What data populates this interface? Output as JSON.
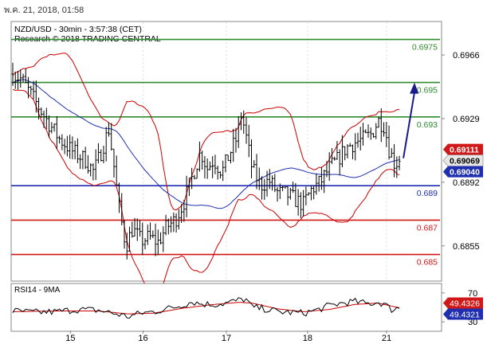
{
  "header": {
    "timestamp": "พ.ค. 21, 2018, 01:58",
    "symbol_line": "NZD/USD - 30min - 3:57:38 (CET)",
    "research_line": "Research © 2018 TRADING CENTRAL"
  },
  "colors": {
    "resistance": "#2e8b2e",
    "pivot": "#1f2fb0",
    "support": "#d01818",
    "price_bar": "#000000",
    "bollinger": "#cc0000",
    "moving_average": "#1f2fb0",
    "forecast_arrow": "#1a1a8c",
    "rsi_line": "#000000",
    "rsi_ma": "#cc0000",
    "tag_red": "#d01818",
    "tag_blue": "#1f2fb0",
    "tag_gray": "#e8e8e8"
  },
  "chart_data": [
    {
      "type": "line",
      "instrument": "NZD/USD",
      "timeframe": "30min",
      "x_ticks": [
        "15",
        "16",
        "17",
        "18",
        "21"
      ],
      "y_ticks": [
        0.6966,
        0.6929,
        0.6892,
        0.6855
      ],
      "ylim": [
        0.6835,
        0.6985
      ],
      "price_path": [
        [
          0.0,
          0.6955
        ],
        [
          0.02,
          0.6952
        ],
        [
          0.05,
          0.694
        ],
        [
          0.08,
          0.6928
        ],
        [
          0.11,
          0.6917
        ],
        [
          0.14,
          0.691
        ],
        [
          0.17,
          0.6905
        ],
        [
          0.19,
          0.6898
        ],
        [
          0.21,
          0.6912
        ],
        [
          0.225,
          0.6923
        ],
        [
          0.235,
          0.6905
        ],
        [
          0.25,
          0.6875
        ],
        [
          0.265,
          0.6855
        ],
        [
          0.28,
          0.6865
        ],
        [
          0.3,
          0.6858
        ],
        [
          0.32,
          0.686
        ],
        [
          0.34,
          0.6857
        ],
        [
          0.36,
          0.6866
        ],
        [
          0.38,
          0.687
        ],
        [
          0.4,
          0.688
        ],
        [
          0.42,
          0.6895
        ],
        [
          0.44,
          0.691
        ],
        [
          0.455,
          0.69
        ],
        [
          0.47,
          0.6905
        ],
        [
          0.49,
          0.6898
        ],
        [
          0.51,
          0.691
        ],
        [
          0.525,
          0.6918
        ],
        [
          0.535,
          0.6932
        ],
        [
          0.545,
          0.692
        ],
        [
          0.56,
          0.69
        ],
        [
          0.58,
          0.689
        ],
        [
          0.6,
          0.6893
        ],
        [
          0.62,
          0.6886
        ],
        [
          0.64,
          0.6885
        ],
        [
          0.66,
          0.6882
        ],
        [
          0.68,
          0.6879
        ],
        [
          0.7,
          0.6888
        ],
        [
          0.72,
          0.6892
        ],
        [
          0.74,
          0.69
        ],
        [
          0.76,
          0.6905
        ],
        [
          0.78,
          0.6912
        ],
        [
          0.8,
          0.6915
        ],
        [
          0.82,
          0.6917
        ],
        [
          0.84,
          0.692
        ],
        [
          0.855,
          0.6928
        ],
        [
          0.87,
          0.6925
        ],
        [
          0.88,
          0.6912
        ],
        [
          0.895,
          0.6902
        ],
        [
          0.905,
          0.6906
        ]
      ],
      "levels": [
        {
          "value": 0.6975,
          "label": "0.6975",
          "kind": "resistance"
        },
        {
          "value": 0.695,
          "label": "0.695",
          "kind": "resistance"
        },
        {
          "value": 0.693,
          "label": "0.693",
          "kind": "resistance"
        },
        {
          "value": 0.689,
          "label": "0.689",
          "kind": "pivot"
        },
        {
          "value": 0.687,
          "label": "0.687",
          "kind": "support"
        },
        {
          "value": 0.685,
          "label": "0.685",
          "kind": "support"
        }
      ],
      "price_tags": [
        {
          "value": 0.69111,
          "label": "0.69111",
          "style": "red"
        },
        {
          "value": 0.69069,
          "label": "0.69069",
          "style": "gray"
        },
        {
          "value": 0.6904,
          "label": "0.69040",
          "style": "blue"
        }
      ],
      "forecast": {
        "from": 0.6906,
        "to": 0.695
      }
    },
    {
      "type": "line",
      "title": "RSI14 - 9MA",
      "y_ticks": [
        70,
        30
      ],
      "ylim": [
        18,
        82
      ],
      "rsi_path": [
        [
          0.0,
          45
        ],
        [
          0.05,
          43
        ],
        [
          0.1,
          44
        ],
        [
          0.15,
          47
        ],
        [
          0.2,
          46
        ],
        [
          0.25,
          40
        ],
        [
          0.27,
          37
        ],
        [
          0.3,
          42
        ],
        [
          0.33,
          44
        ],
        [
          0.36,
          48
        ],
        [
          0.39,
          52
        ],
        [
          0.42,
          58
        ],
        [
          0.44,
          55
        ],
        [
          0.47,
          54
        ],
        [
          0.5,
          56
        ],
        [
          0.53,
          60
        ],
        [
          0.545,
          62
        ],
        [
          0.56,
          50
        ],
        [
          0.59,
          48
        ],
        [
          0.62,
          44
        ],
        [
          0.65,
          43
        ],
        [
          0.68,
          42
        ],
        [
          0.71,
          46
        ],
        [
          0.74,
          52
        ],
        [
          0.77,
          56
        ],
        [
          0.8,
          58
        ],
        [
          0.83,
          55
        ],
        [
          0.855,
          57
        ],
        [
          0.87,
          55
        ],
        [
          0.885,
          47
        ],
        [
          0.905,
          49.43
        ]
      ],
      "ma_path": [
        [
          0.0,
          44
        ],
        [
          0.1,
          45
        ],
        [
          0.2,
          45
        ],
        [
          0.27,
          41
        ],
        [
          0.33,
          42
        ],
        [
          0.4,
          49
        ],
        [
          0.47,
          54
        ],
        [
          0.53,
          57
        ],
        [
          0.56,
          56
        ],
        [
          0.62,
          48
        ],
        [
          0.68,
          44
        ],
        [
          0.74,
          47
        ],
        [
          0.8,
          54
        ],
        [
          0.855,
          56
        ],
        [
          0.905,
          49.43
        ]
      ],
      "value_tags": [
        {
          "value": 49.4326,
          "label": "49.4326",
          "style": "red"
        },
        {
          "value": 49.4321,
          "label": "49.4321",
          "style": "blue"
        }
      ]
    }
  ]
}
